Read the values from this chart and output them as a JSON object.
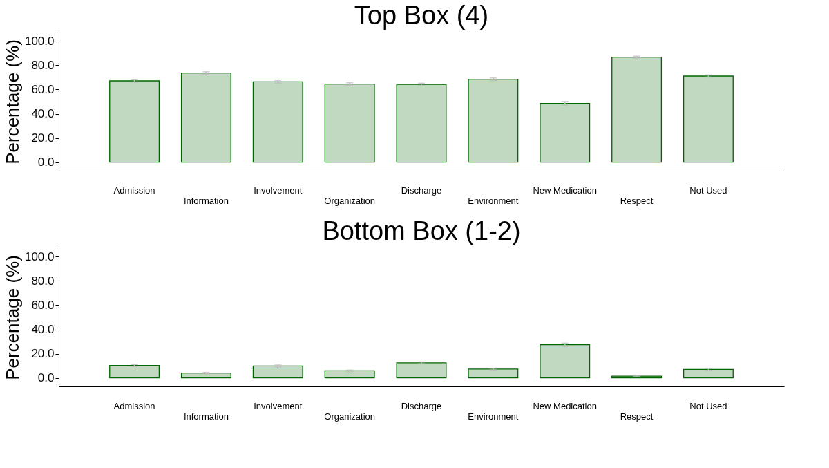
{
  "chart_data": [
    {
      "type": "bar",
      "title": "Top Box (4)",
      "ylabel": "Percentage (%)",
      "categories": [
        "Admission",
        "Information",
        "Involvement",
        "Organization",
        "Discharge",
        "Environment",
        "New Medication",
        "Respect",
        "Not Used"
      ],
      "values": [
        67.1,
        73.6,
        66.3,
        64.5,
        64.2,
        68.5,
        48.5,
        86.7,
        71.1
      ],
      "errors": [
        1.0,
        1.0,
        1.0,
        1.0,
        1.0,
        1.0,
        1.5,
        0.8,
        0.9
      ],
      "color": "#c0d9c0",
      "ylim": [
        -7,
        107
      ],
      "yticks": [
        {
          "value": 0,
          "label": "0.0"
        },
        {
          "value": 20,
          "label": "20.0"
        },
        {
          "value": 40,
          "label": "40.0"
        },
        {
          "value": 60,
          "label": "60.0"
        },
        {
          "value": 80,
          "label": "80.0"
        },
        {
          "value": 100,
          "label": "100.0"
        }
      ],
      "grid": false
    },
    {
      "type": "bar",
      "title": "Bottom Box (1-2)",
      "ylabel": "Percentage (%)",
      "categories": [
        "Admission",
        "Information",
        "Involvement",
        "Organization",
        "Discharge",
        "Environment",
        "New Medication",
        "Respect",
        "Not Used"
      ],
      "values": [
        10.3,
        4.0,
        9.9,
        5.9,
        12.4,
        7.3,
        27.4,
        1.5,
        7.0
      ],
      "errors": [
        0.8,
        0.6,
        0.8,
        0.6,
        0.8,
        0.7,
        1.3,
        0.4,
        0.7
      ],
      "color": "#c0d9c0",
      "ylim": [
        -7,
        107
      ],
      "yticks": [
        {
          "value": 0,
          "label": "0.0"
        },
        {
          "value": 20,
          "label": "20.0"
        },
        {
          "value": 40,
          "label": "40.0"
        },
        {
          "value": 60,
          "label": "60.0"
        },
        {
          "value": 80,
          "label": "80.0"
        },
        {
          "value": 100,
          "label": "100.0"
        }
      ],
      "grid": false
    }
  ]
}
